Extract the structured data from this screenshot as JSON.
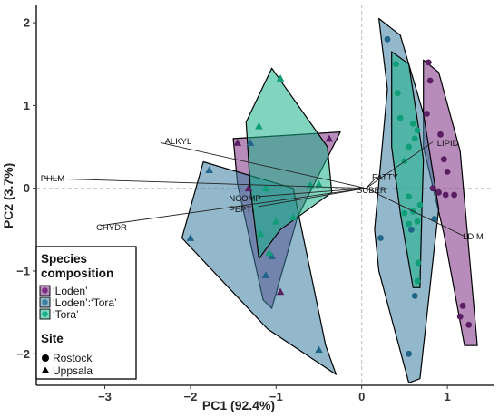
{
  "chart_data": {
    "type": "scatter",
    "xlabel": "PC1 (92.4%)",
    "ylabel": "PC2 (3.7%)",
    "xlim": [
      -3.8,
      1.55
    ],
    "ylim": [
      -2.38,
      2.22
    ],
    "x_ticks": [
      -3,
      -2,
      -1,
      0,
      1
    ],
    "y_ticks": [
      -2,
      -1,
      0,
      1,
      2
    ],
    "x_tick_labels": [
      "−3",
      "−2",
      "−1",
      "0",
      "1"
    ],
    "y_tick_labels": [
      "−2",
      "−1",
      "0",
      "1",
      "2"
    ],
    "reference_lines": {
      "x": 0,
      "y": 0,
      "style": "dashed"
    },
    "grid": false,
    "legend_position": "bottom-left",
    "legend": {
      "species_title_line1": "Species",
      "species_title_line2": "composition",
      "species": [
        {
          "label": "‘Loden’",
          "color": "#7b2d83"
        },
        {
          "label": "‘Loden’:‘Tora’",
          "color": "#3b7ea1"
        },
        {
          "label": "‘Tora’",
          "color": "#19b38a"
        }
      ],
      "site_title": "Site",
      "sites": [
        {
          "label": "Rostock",
          "shape": "circle"
        },
        {
          "label": "Uppsala",
          "shape": "triangle"
        }
      ]
    },
    "loadings": [
      {
        "name": "ALKYL",
        "x": -2.35,
        "y": 0.55,
        "lx": -2.3,
        "ly": 0.57
      },
      {
        "name": "PHLM",
        "x": -3.7,
        "y": 0.12,
        "lx": -3.75,
        "ly": 0.12
      },
      {
        "name": "CHYDR",
        "x": -3.05,
        "y": -0.45,
        "lx": -3.1,
        "ly": -0.47
      },
      {
        "name": "NCOMP",
        "x": -1.2,
        "y": -0.1,
        "lx": -1.55,
        "ly": -0.12
      },
      {
        "name": "PEPTI",
        "x": -1.2,
        "y": -0.22,
        "lx": -1.55,
        "ly": -0.25
      },
      {
        "name": "LIPID",
        "x": 0.83,
        "y": 0.56,
        "lx": 0.88,
        "ly": 0.55
      },
      {
        "name": "FATTY",
        "x": 0.18,
        "y": 0.14,
        "lx": 0.12,
        "ly": 0.14
      },
      {
        "name": "SUBER",
        "x": 0.05,
        "y": -0.02,
        "lx": -0.06,
        "ly": -0.02
      },
      {
        "name": "LDIM",
        "x": 1.2,
        "y": -0.58,
        "lx": 1.18,
        "ly": -0.58
      }
    ],
    "points": {
      "loden_rostock": [
        [
          0.78,
          1.52
        ],
        [
          0.8,
          1.3
        ],
        [
          0.76,
          0.9
        ],
        [
          0.92,
          0.65
        ],
        [
          0.96,
          0.35
        ],
        [
          1.0,
          0.2
        ],
        [
          1.08,
          -0.08
        ],
        [
          0.98,
          -0.08
        ],
        [
          0.9,
          -0.05
        ],
        [
          0.83,
          0.0
        ],
        [
          1.18,
          -1.42
        ],
        [
          1.25,
          -1.65
        ],
        [
          1.15,
          -1.55
        ]
      ],
      "loden_uppsala": [
        [
          -1.45,
          0.55
        ],
        [
          -0.38,
          0.6
        ],
        [
          -1.32,
          0.0
        ],
        [
          -0.95,
          -1.25
        ]
      ],
      "lt_rostock": [
        [
          0.3,
          1.8
        ],
        [
          0.22,
          -0.6
        ],
        [
          0.62,
          -1.3
        ],
        [
          0.85,
          -0.37
        ],
        [
          0.55,
          -2.0
        ],
        [
          0.58,
          -0.5
        ]
      ],
      "lt_uppsala": [
        [
          -1.78,
          0.22
        ],
        [
          -2.0,
          -0.6
        ],
        [
          -1.3,
          0.55
        ],
        [
          -1.05,
          -0.82
        ],
        [
          -1.12,
          -1.05
        ],
        [
          -0.5,
          -1.95
        ]
      ],
      "tora_rostock": [
        [
          0.4,
          1.5
        ],
        [
          0.42,
          1.15
        ],
        [
          0.45,
          0.85
        ],
        [
          0.6,
          0.78
        ],
        [
          0.65,
          0.7
        ],
        [
          0.62,
          0.6
        ],
        [
          0.55,
          0.5
        ],
        [
          0.5,
          0.33
        ],
        [
          0.55,
          -0.1
        ],
        [
          0.5,
          -0.3
        ],
        [
          0.55,
          -0.43
        ],
        [
          0.65,
          -0.4
        ],
        [
          0.68,
          -0.2
        ],
        [
          0.6,
          -0.28
        ],
        [
          0.66,
          -0.9
        ],
        [
          0.65,
          -1.12
        ]
      ],
      "tora_uppsala": [
        [
          -0.95,
          1.33
        ],
        [
          -1.2,
          0.75
        ],
        [
          -1.12,
          0.0
        ],
        [
          -0.6,
          0.04
        ],
        [
          -0.5,
          0.05
        ],
        [
          -1.0,
          -0.4
        ],
        [
          -0.8,
          -0.35
        ],
        [
          -1.18,
          -0.55
        ],
        [
          -1.08,
          -0.78
        ]
      ]
    },
    "hulls": [
      {
        "group": "loden_rostock",
        "color": "#7b2d83",
        "vertices": [
          [
            0.72,
            1.55
          ],
          [
            0.9,
            1.4
          ],
          [
            1.15,
            0.45
          ],
          [
            1.35,
            -1.9
          ],
          [
            1.2,
            -1.9
          ],
          [
            0.96,
            -0.55
          ],
          [
            0.72,
            0.5
          ]
        ]
      },
      {
        "group": "loden_uppsala",
        "color": "#7b2d83",
        "vertices": [
          [
            -1.5,
            0.6
          ],
          [
            -0.25,
            0.68
          ],
          [
            -0.75,
            -0.35
          ],
          [
            -1.05,
            -1.45
          ],
          [
            -1.15,
            -1.35
          ],
          [
            -1.45,
            0.05
          ]
        ]
      },
      {
        "group": "lt_rostock",
        "color": "#3b7ea1",
        "vertices": [
          [
            0.2,
            2.05
          ],
          [
            0.45,
            1.85
          ],
          [
            0.72,
            0.9
          ],
          [
            0.9,
            -0.25
          ],
          [
            0.85,
            -0.7
          ],
          [
            0.68,
            -2.3
          ],
          [
            0.55,
            -2.35
          ],
          [
            0.2,
            -1.0
          ],
          [
            0.15,
            -0.5
          ],
          [
            0.3,
            1.2
          ]
        ]
      },
      {
        "group": "lt_uppsala",
        "color": "#3b7ea1",
        "vertices": [
          [
            -1.85,
            0.32
          ],
          [
            -0.8,
            0.0
          ],
          [
            -0.42,
            -1.9
          ],
          [
            -0.3,
            -2.25
          ],
          [
            -1.1,
            -1.7
          ],
          [
            -2.1,
            -0.6
          ]
        ]
      },
      {
        "group": "tora_rostock",
        "color": "#19b38a",
        "vertices": [
          [
            0.35,
            1.65
          ],
          [
            0.55,
            1.5
          ],
          [
            0.72,
            0.35
          ],
          [
            0.7,
            -0.35
          ],
          [
            0.68,
            -1.2
          ],
          [
            0.6,
            -1.2
          ],
          [
            0.45,
            -0.3
          ],
          [
            0.35,
            0.5
          ]
        ]
      },
      {
        "group": "tora_uppsala",
        "color": "#19b38a",
        "vertices": [
          [
            -1.05,
            1.45
          ],
          [
            -0.4,
            0.5
          ],
          [
            -0.35,
            -0.05
          ],
          [
            -0.95,
            -0.5
          ],
          [
            -1.2,
            -0.85
          ],
          [
            -1.3,
            0.0
          ],
          [
            -1.35,
            0.8
          ]
        ]
      }
    ]
  }
}
